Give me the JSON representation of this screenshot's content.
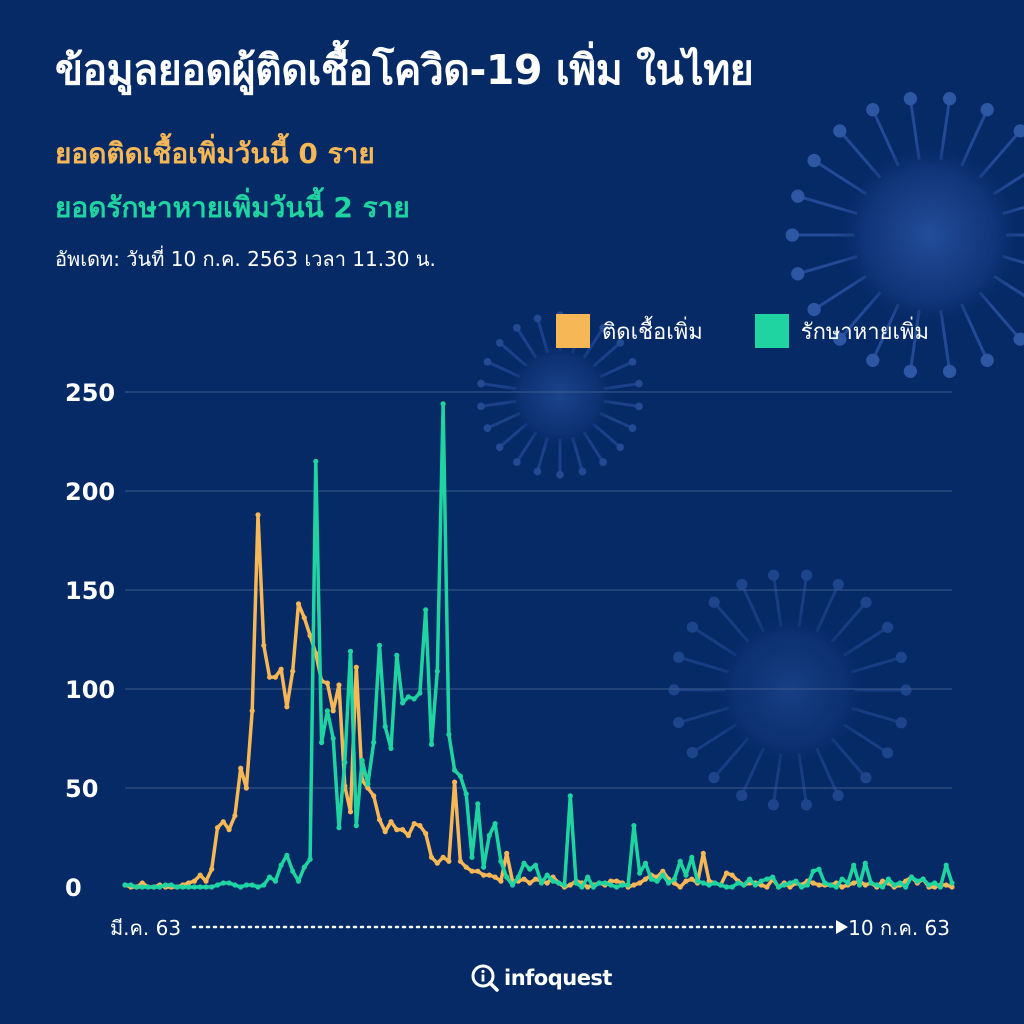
{
  "header": {
    "title": "ข้อมูลยอดผู้ติดเชื้อโควิด-19 เพิ่ม ในไทย",
    "infected_today": "ยอดติดเชื้อเพิ่มวันนี้ 0 ราย",
    "recovered_today": "ยอดรักษาหายเพิ่มวันนี้ 2 ราย",
    "updated": "อัพเดท: วันที่ 10 ก.ค. 2563 เวลา 11.30 น."
  },
  "colors": {
    "background": "#062a66",
    "infected": "#f6b756",
    "recovered": "#1fd4a0",
    "grid": "#3d5b8f"
  },
  "logo": {
    "text": "infoquest",
    "icon": "info-magnifier-icon"
  },
  "chart_data": {
    "type": "line",
    "x_start_label": "มี.ค. 63",
    "x_end_label": "10 ก.ค. 63",
    "ylim": [
      0,
      250
    ],
    "y_ticks": [
      0,
      50,
      100,
      150,
      200,
      250
    ],
    "grid": true,
    "legend_position": "top-right",
    "series": [
      {
        "name": "ติดเชื้อเพิ่ม",
        "color": "#f6b756",
        "values": [
          1,
          0,
          0,
          2,
          0,
          0,
          1,
          0,
          0,
          0,
          1,
          2,
          3,
          6,
          3,
          9,
          30,
          33,
          29,
          36,
          60,
          50,
          89,
          188,
          122,
          106,
          106,
          110,
          91,
          109,
          143,
          136,
          127,
          118,
          104,
          103,
          89,
          102,
          51,
          38,
          111,
          54,
          50,
          46,
          34,
          28,
          33,
          29,
          29,
          26,
          32,
          31,
          27,
          15,
          12,
          15,
          13,
          53,
          13,
          10,
          8,
          8,
          6,
          6,
          5,
          3,
          17,
          3,
          3,
          4,
          2,
          4,
          3,
          2,
          5,
          2,
          0,
          1,
          3,
          2,
          0,
          1,
          2,
          1,
          3,
          3,
          2,
          0,
          1,
          2,
          4,
          6,
          5,
          8,
          4,
          2,
          0,
          3,
          4,
          2,
          17,
          3,
          2,
          1,
          7,
          6,
          3,
          1,
          2,
          2,
          1,
          0,
          4,
          0,
          2,
          0,
          2,
          1,
          3,
          2,
          1,
          1,
          1,
          2,
          0,
          1,
          2,
          3,
          1,
          2,
          0,
          3,
          2,
          0,
          1,
          3,
          5,
          2,
          4,
          0,
          0,
          1,
          1,
          0
        ]
      },
      {
        "name": "รักษาหายเพิ่ม",
        "color": "#1fd4a0",
        "values": [
          1,
          1,
          0,
          0,
          0,
          0,
          0,
          1,
          1,
          0,
          0,
          0,
          0,
          0,
          0,
          0,
          1,
          2,
          2,
          1,
          0,
          1,
          1,
          0,
          1,
          5,
          3,
          11,
          16,
          8,
          3,
          10,
          14,
          215,
          73,
          89,
          75,
          30,
          63,
          119,
          31,
          64,
          52,
          73,
          122,
          81,
          70,
          117,
          93,
          96,
          95,
          98,
          140,
          72,
          109,
          244,
          77,
          59,
          56,
          47,
          15,
          42,
          10,
          26,
          32,
          13,
          5,
          1,
          5,
          12,
          9,
          11,
          2,
          6,
          3,
          2,
          1,
          46,
          2,
          0,
          5,
          0,
          2,
          2,
          1,
          0,
          1,
          1,
          31,
          7,
          12,
          4,
          3,
          6,
          2,
          4,
          13,
          6,
          15,
          3,
          2,
          1,
          2,
          1,
          0,
          0,
          2,
          1,
          4,
          1,
          3,
          4,
          5,
          0,
          1,
          2,
          3,
          0,
          1,
          8,
          9,
          2,
          1,
          0,
          4,
          2,
          11,
          1,
          12,
          2,
          1,
          0,
          4,
          1,
          2,
          0,
          5,
          3,
          4,
          1,
          2,
          0,
          11,
          2
        ]
      }
    ]
  }
}
